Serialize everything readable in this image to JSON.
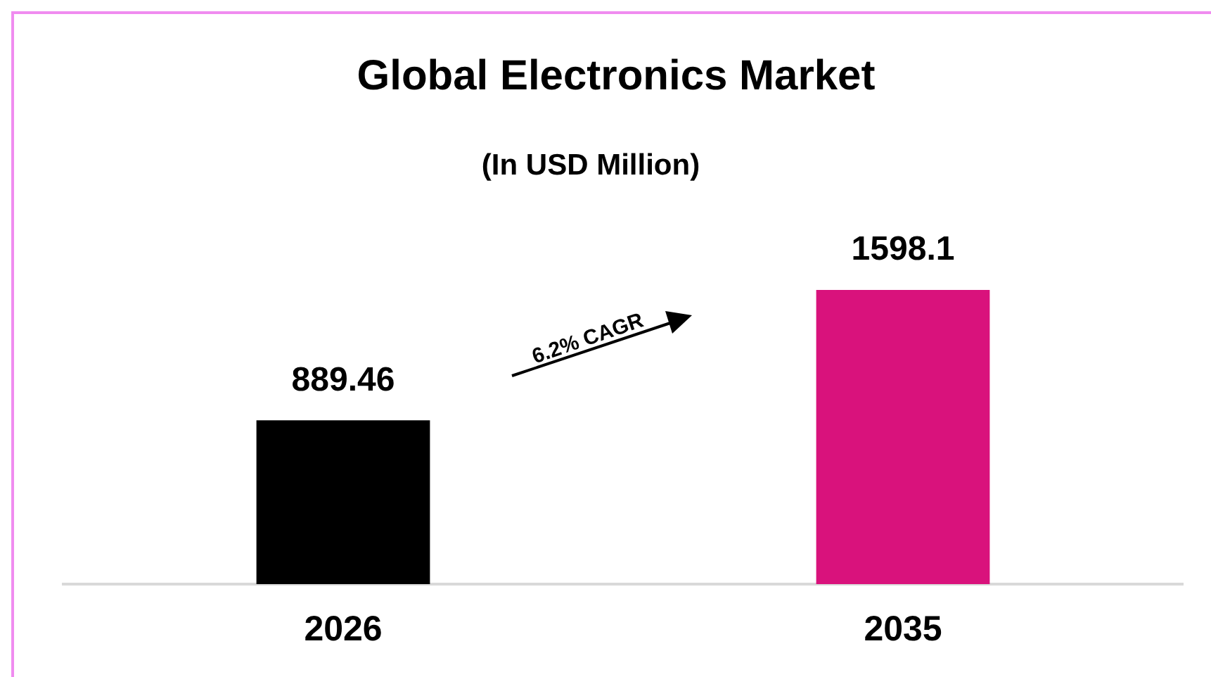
{
  "chart_data": {
    "type": "bar",
    "title": "Global Electronics Market",
    "subtitle": "(In USD Million)",
    "categories": [
      "2026",
      "2035"
    ],
    "values": [
      889.46,
      1598.1
    ],
    "colors": [
      "#000000",
      "#d9127c"
    ],
    "data_labels": true,
    "annotations": [
      "6.2% CAGR"
    ],
    "legend": false,
    "grid": false
  }
}
